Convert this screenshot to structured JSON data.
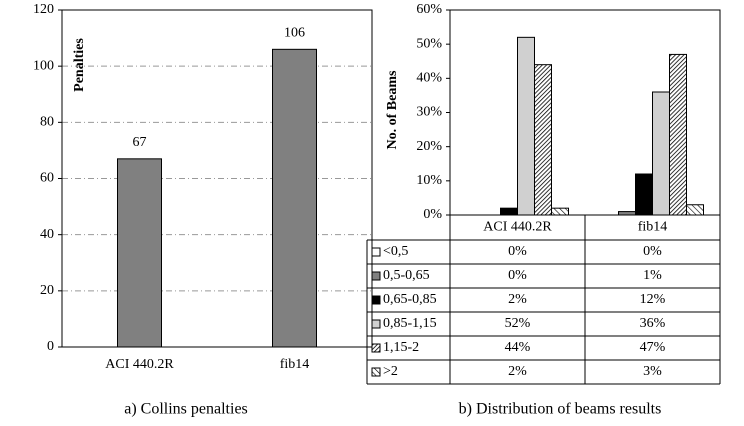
{
  "chart_data": [
    {
      "type": "bar",
      "caption": "a) Collins penalties",
      "ylabel": "Penalties",
      "categories": [
        "ACI 440.2R",
        "fib14"
      ],
      "values": [
        67,
        106
      ],
      "color": "#808080",
      "ylim": [
        0,
        120
      ],
      "yticks": [
        0,
        20,
        40,
        60,
        80,
        100,
        120
      ],
      "grid": true
    },
    {
      "type": "grouped-bar-table",
      "caption": "b) Distribution of beams results",
      "ylabel": "No. of Beams",
      "categories": [
        "ACI 440.2R",
        "fib14"
      ],
      "series": [
        {
          "name": "<0,5",
          "color": "#ffffff",
          "values": [
            0,
            0
          ],
          "value_labels": [
            "0%",
            "0%"
          ]
        },
        {
          "name": "0,5-0,65",
          "color": "#808080",
          "values": [
            0,
            1
          ],
          "value_labels": [
            "0%",
            "1%"
          ]
        },
        {
          "name": "0,65-0,85",
          "color": "#000000",
          "values": [
            2,
            12
          ],
          "value_labels": [
            "2%",
            "12%"
          ]
        },
        {
          "name": "0,85-1,15",
          "color": "#d0d0d0",
          "values": [
            52,
            36
          ],
          "value_labels": [
            "52%",
            "36%"
          ]
        },
        {
          "name": "1,15-2",
          "color": "#ffffff",
          "hatch": "dense",
          "values": [
            44,
            47
          ],
          "value_labels": [
            "44%",
            "47%"
          ]
        },
        {
          "name": ">2",
          "color": "#ffffff",
          "hatch": "sparse",
          "values": [
            2,
            3
          ],
          "value_labels": [
            "2%",
            "3%"
          ]
        }
      ],
      "ylim": [
        0,
        60
      ],
      "yticks": [
        {
          "value": 0,
          "label": "0%"
        },
        {
          "value": 10,
          "label": "10%"
        },
        {
          "value": 20,
          "label": "20%"
        },
        {
          "value": 30,
          "label": "30%"
        },
        {
          "value": 40,
          "label": "40%"
        },
        {
          "value": 50,
          "label": "50%"
        },
        {
          "value": 60,
          "label": "60%"
        }
      ],
      "grid": false
    }
  ]
}
